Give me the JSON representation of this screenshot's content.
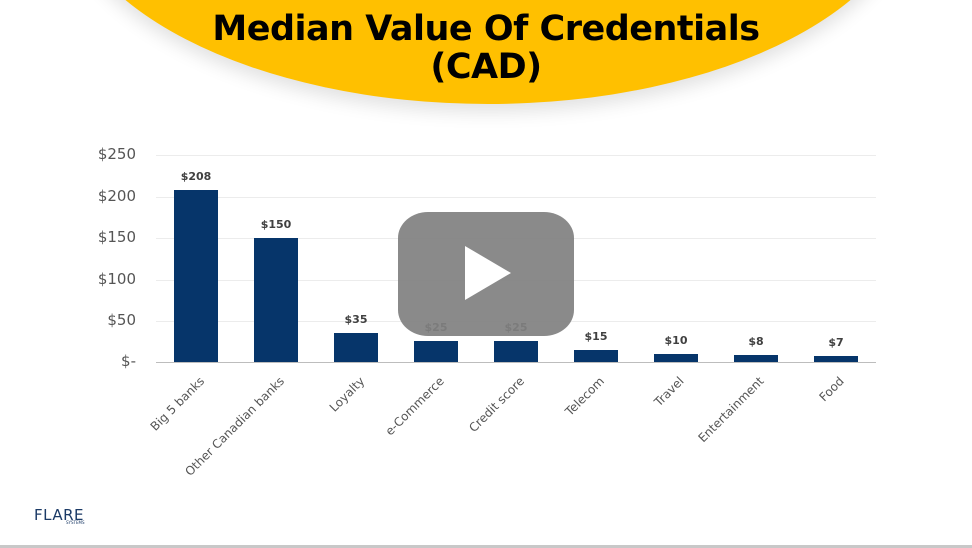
{
  "header": {
    "title_line1": "Median Value Of Credentials",
    "title_line2": "(CAD)",
    "banner_color": "#FFC000"
  },
  "chart_data": {
    "type": "bar",
    "title": "Median Value Of Credentials (CAD)",
    "xlabel": "",
    "ylabel": "",
    "ylim": [
      0,
      250
    ],
    "grid": true,
    "yticks": [
      "$250",
      "$200",
      "$150",
      "$100",
      "$50",
      "$-"
    ],
    "categories": [
      "Big 5 banks",
      "Other Canadian banks",
      "Loyalty",
      "e-Commerce",
      "Credit score",
      "Telecom",
      "Travel",
      "Entertainment",
      "Food"
    ],
    "values": [
      208,
      150,
      35,
      25,
      25,
      15,
      10,
      8,
      7
    ],
    "value_labels": [
      "$208",
      "$150",
      "$35",
      "$25",
      "$25",
      "$15",
      "$10",
      "$8",
      "$7"
    ],
    "bar_color": "#06356A"
  },
  "video": {
    "play_icon": "play-icon"
  },
  "footer": {
    "logo_text": "FLARE",
    "logo_subtext": "SYSTEMS"
  }
}
